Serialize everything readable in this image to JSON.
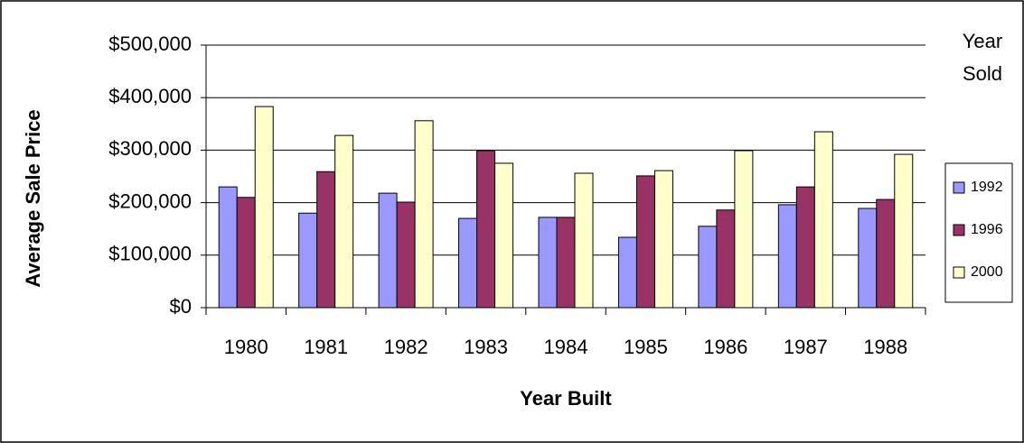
{
  "chart_data": {
    "type": "bar",
    "x_label": "Year Built",
    "y_label": "Average Sale Price",
    "legend_title": [
      "Year",
      "Sold"
    ],
    "categories": [
      "1980",
      "1981",
      "1982",
      "1983",
      "1984",
      "1985",
      "1986",
      "1987",
      "1988"
    ],
    "series": [
      {
        "name": "1992",
        "color": "#9999ff",
        "values": [
          230000,
          180000,
          218000,
          170000,
          172000,
          134000,
          155000,
          196000,
          189000
        ]
      },
      {
        "name": "1996",
        "color": "#993366",
        "values": [
          210000,
          259000,
          201000,
          299000,
          172000,
          251000,
          186000,
          230000,
          206000
        ]
      },
      {
        "name": "2000",
        "color": "#ffffcc",
        "values": [
          383000,
          328000,
          356000,
          275000,
          256000,
          261000,
          299000,
          335000,
          292000
        ]
      }
    ],
    "ylim": [
      0,
      500000
    ],
    "yticks": [
      {
        "value": 0,
        "label": "$0"
      },
      {
        "value": 100000,
        "label": "$100,000"
      },
      {
        "value": 200000,
        "label": "$200,000"
      },
      {
        "value": 300000,
        "label": "$300,000"
      },
      {
        "value": 400000,
        "label": "$400,000"
      },
      {
        "value": 500000,
        "label": "$500,000"
      }
    ],
    "grid": true,
    "legend_position": "right"
  }
}
